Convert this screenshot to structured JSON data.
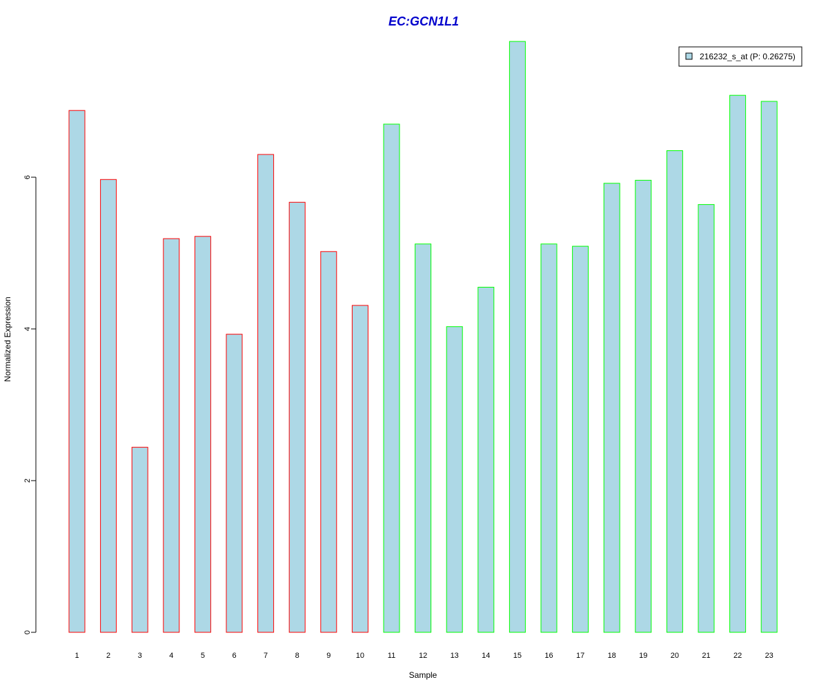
{
  "chart_data": {
    "type": "bar",
    "title": "EC:GCN1L1",
    "xlabel": "Sample",
    "ylabel": "Normalized Expression",
    "categories": [
      "1",
      "2",
      "3",
      "4",
      "5",
      "6",
      "7",
      "8",
      "9",
      "10",
      "11",
      "12",
      "13",
      "14",
      "15",
      "16",
      "17",
      "18",
      "19",
      "20",
      "21",
      "22",
      "23"
    ],
    "series": [
      {
        "name": "216232_s_at (P: 0.26275)",
        "values": [
          6.88,
          5.97,
          2.44,
          5.19,
          5.22,
          3.93,
          6.3,
          5.67,
          5.02,
          4.31,
          6.7,
          5.12,
          4.03,
          4.55,
          7.79,
          5.12,
          5.09,
          5.92,
          5.96,
          6.35,
          5.64,
          7.08,
          7.0
        ]
      }
    ],
    "group_colors": [
      "#ff0000",
      "#ff0000",
      "#ff0000",
      "#ff0000",
      "#ff0000",
      "#ff0000",
      "#ff0000",
      "#ff0000",
      "#ff0000",
      "#ff0000",
      "#00ff00",
      "#00ff00",
      "#00ff00",
      "#00ff00",
      "#00ff00",
      "#00ff00",
      "#00ff00",
      "#00ff00",
      "#00ff00",
      "#00ff00",
      "#00ff00",
      "#00ff00",
      "#00ff00"
    ],
    "y_ticks": [
      0,
      2,
      4,
      6
    ],
    "ylim": [
      0,
      7.8
    ],
    "bar_fill": "#add8e6",
    "title_color": "#0000cc",
    "legend_position": "top-right",
    "grid": false
  }
}
